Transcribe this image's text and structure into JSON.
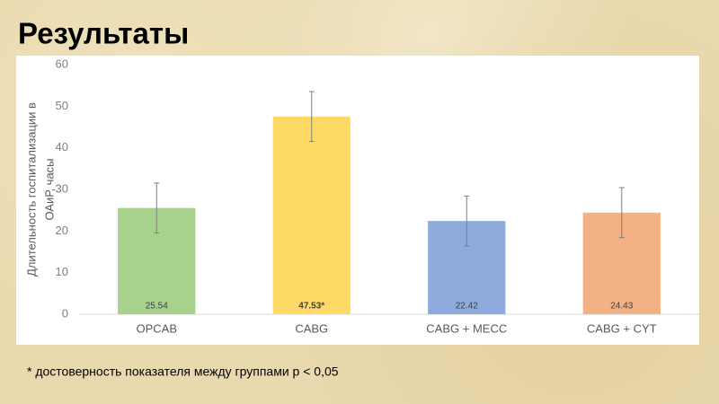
{
  "chart_data": {
    "type": "bar",
    "title": "Результаты",
    "ylabel": [
      "Длительность госпитализации в",
      "ОАиР, часы"
    ],
    "categories": [
      "OPCAB",
      "CABG",
      "CABG + MECC",
      "CABG + CYT"
    ],
    "values": [
      25.54,
      47.53,
      22.42,
      24.43
    ],
    "value_labels": [
      "25.54",
      "47.53*",
      "22.42",
      "24.43"
    ],
    "errors": [
      6,
      6,
      6,
      6
    ],
    "colors": [
      "#a9d18e",
      "#ffd966",
      "#8faadc",
      "#f4b183"
    ],
    "ylim": [
      0,
      60
    ],
    "yticks": [
      0,
      10,
      20,
      30,
      40,
      50,
      60
    ],
    "grid": false,
    "footnote": "* достоверность показателя между группами р < 0,05"
  }
}
